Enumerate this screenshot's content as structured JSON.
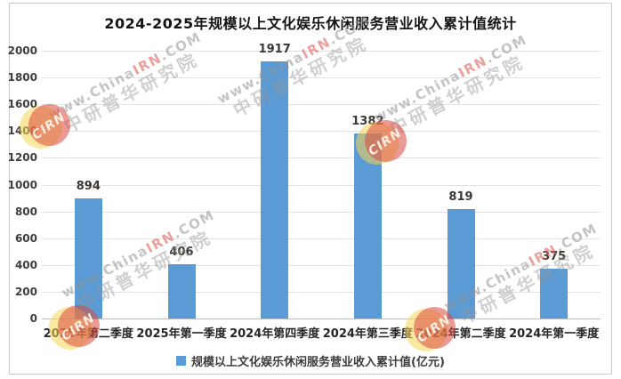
{
  "title": "2024-2025年规模以上文化娱乐休闲服务营业收入累计值统计",
  "chart_data": {
    "type": "bar",
    "categories": [
      "2025年第二季度",
      "2025年第一季度",
      "2024年第四季度",
      "2024年第三季度",
      "2024年第二季度",
      "2024年第一季度"
    ],
    "values": [
      894,
      406,
      1917,
      1382,
      819,
      375
    ],
    "title": "2024-2025年规模以上文化娱乐休闲服务营业收入累计值统计",
    "xlabel": "",
    "ylabel": "",
    "ylim": [
      0,
      2000
    ],
    "yticks": [
      0,
      200,
      400,
      600,
      800,
      1000,
      1200,
      1400,
      1600,
      1800,
      2000
    ],
    "grid": true,
    "legend": "规模以上文化娱乐休闲服务营业收入累计值(亿元)",
    "legend_position": "bottom",
    "bar_color": "#5B9BD5"
  },
  "legend": {
    "label": "规模以上文化娱乐休闲服务营业收入累计值(亿元)"
  },
  "watermark": {
    "line1_prefix": "www.China",
    "line1_red": "IRN",
    "line1_suffix": ".COM",
    "line2": "中研普华研究院",
    "logo_text": "CIRN"
  },
  "colors": {
    "bar": "#5B9BD5",
    "gridline": "#e2e2e2",
    "axis_line": "#bdbdbd",
    "title_text": "#141414",
    "label_text": "#3b3734",
    "watermark_gray": "#949494",
    "watermark_red": "#e0605a"
  }
}
